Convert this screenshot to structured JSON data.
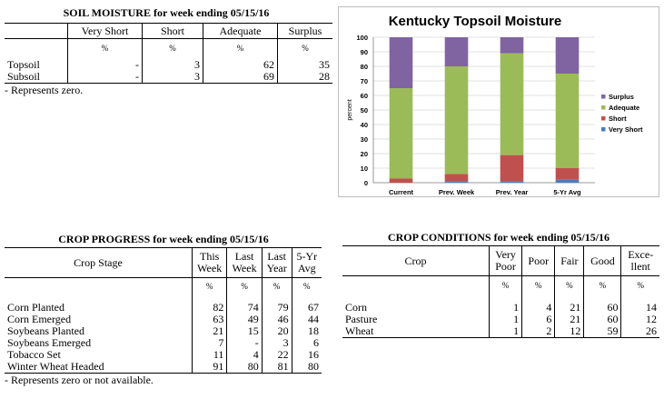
{
  "soil": {
    "title": "SOIL MOISTURE for week ending 05/15/16",
    "headers": [
      "Very Short",
      "Short",
      "Adequate",
      "Surplus"
    ],
    "units": [
      "%",
      "%",
      "%",
      "%"
    ],
    "rows": [
      {
        "label": "Topsoil",
        "values": [
          "-",
          "3",
          "62",
          "35"
        ]
      },
      {
        "label": "Subsoil",
        "values": [
          "-",
          "3",
          "69",
          "28"
        ]
      }
    ],
    "note": "- Represents zero."
  },
  "crop_progress": {
    "title": "CROP PROGRESS for week ending 05/15/16",
    "stage_header": "Crop Stage",
    "headers": [
      [
        "This",
        "Week"
      ],
      [
        "Last",
        "Week"
      ],
      [
        "Last",
        "Year"
      ],
      [
        "5-Yr",
        "Avg"
      ]
    ],
    "units": [
      "%",
      "%",
      "%",
      "%"
    ],
    "rows": [
      {
        "label": "Corn Planted",
        "values": [
          "82",
          "74",
          "79",
          "67"
        ]
      },
      {
        "label": "Corn Emerged",
        "values": [
          "63",
          "49",
          "46",
          "44"
        ]
      },
      {
        "label": "Soybeans Planted",
        "values": [
          "21",
          "15",
          "20",
          "18"
        ]
      },
      {
        "label": "Soybeans Emerged",
        "values": [
          "7",
          "-",
          "3",
          "6"
        ]
      },
      {
        "label": "Tobacco Set",
        "values": [
          "11",
          "4",
          "22",
          "16"
        ]
      },
      {
        "label": "Winter Wheat Headed",
        "values": [
          "91",
          "80",
          "81",
          "80"
        ]
      }
    ],
    "note": "- Represents zero or not available."
  },
  "crop_conditions": {
    "title": "CROP CONDITIONS for week ending 05/15/16",
    "crop_header": "Crop",
    "headers": [
      [
        "Very",
        "Poor"
      ],
      [
        "Poor"
      ],
      [
        "Fair"
      ],
      [
        "Good"
      ],
      [
        "Exce-",
        "llent"
      ]
    ],
    "units": [
      "%",
      "%",
      "%",
      "%",
      "%"
    ],
    "rows": [
      {
        "label": "Corn",
        "values": [
          "1",
          "4",
          "21",
          "60",
          "14"
        ]
      },
      {
        "label": "Pasture",
        "values": [
          "1",
          "6",
          "21",
          "60",
          "12"
        ]
      },
      {
        "label": "Wheat",
        "values": [
          "1",
          "2",
          "12",
          "59",
          "26"
        ]
      }
    ]
  },
  "chart_data": {
    "type": "bar",
    "stacked": true,
    "title": "Kentucky Topsoil Moisture",
    "ylabel": "percent",
    "xlabel": "",
    "ylim": [
      0,
      100
    ],
    "yticks": [
      0,
      10,
      20,
      30,
      40,
      50,
      60,
      70,
      80,
      90,
      100
    ],
    "categories": [
      "Current",
      "Prev. Week",
      "Prev. Year",
      "5-Yr Avg"
    ],
    "series": [
      {
        "name": "Very Short",
        "color": "#4a7ebb",
        "values": [
          0,
          1,
          1,
          2
        ]
      },
      {
        "name": "Short",
        "color": "#c0504d",
        "values": [
          3,
          5,
          18,
          8
        ]
      },
      {
        "name": "Adequate",
        "color": "#9bbb59",
        "values": [
          62,
          74,
          70,
          65
        ]
      },
      {
        "name": "Surplus",
        "color": "#8064a2",
        "values": [
          35,
          20,
          11,
          25
        ]
      }
    ],
    "legend_order": [
      "Surplus",
      "Adequate",
      "Short",
      "Very Short"
    ],
    "legend_position": "right",
    "grid": true
  }
}
